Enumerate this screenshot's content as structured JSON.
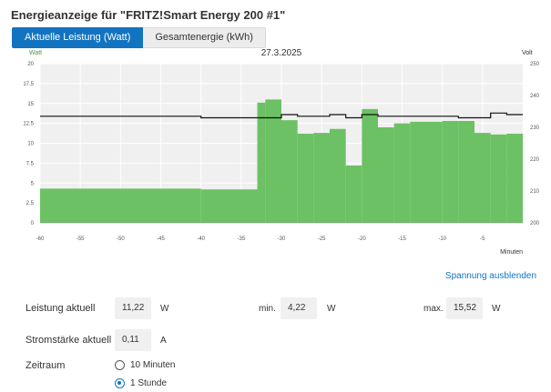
{
  "page": {
    "title": "Energieanzeige für \"FRITZ!Smart Energy 200 #1\""
  },
  "tabs": [
    {
      "label": "Aktuelle Leistung (Watt)",
      "active": true
    },
    {
      "label": "Gesamtenergie (kWh)",
      "active": false
    }
  ],
  "chart_data": {
    "type": "bar",
    "title": "27.3.2025",
    "left_axis_label": "Watt",
    "right_axis_label": "Volt",
    "xlabel": "Minuten",
    "xlim": [
      -60,
      0
    ],
    "ylim": [
      0,
      20
    ],
    "y2lim": [
      200,
      250
    ],
    "x_ticks": [
      -60,
      -55,
      -50,
      -45,
      -40,
      -35,
      -30,
      -25,
      -20,
      -15,
      -10,
      -5
    ],
    "x_tick_labels": [
      "-60",
      "-55",
      "-50",
      "-45",
      "-40",
      "-35",
      "-30",
      "-25",
      "-20",
      "-15",
      "-10",
      "-5"
    ],
    "y_tick_labels": [
      "0",
      "2.5",
      "5",
      "7.5",
      "10",
      "12.5",
      "15",
      "17.5",
      "20"
    ],
    "y2_tick_labels": [
      "200",
      "210",
      "220",
      "230",
      "240",
      "250"
    ],
    "bar_color": "#6cc164",
    "voltage_color": "#111111",
    "power_series": {
      "name": "Leistung",
      "bars": [
        {
          "from": -60,
          "to": -40,
          "value": 4.3
        },
        {
          "from": -40,
          "to": -33,
          "value": 4.2
        },
        {
          "from": -33,
          "to": -32,
          "value": 15.1
        },
        {
          "from": -32,
          "to": -30,
          "value": 15.5
        },
        {
          "from": -30,
          "to": -28,
          "value": 12.9
        },
        {
          "from": -28,
          "to": -26,
          "value": 11.2
        },
        {
          "from": -26,
          "to": -24,
          "value": 11.3
        },
        {
          "from": -24,
          "to": -22,
          "value": 11.8
        },
        {
          "from": -22,
          "to": -20,
          "value": 7.2
        },
        {
          "from": -20,
          "to": -18,
          "value": 14.3
        },
        {
          "from": -18,
          "to": -16,
          "value": 12.0
        },
        {
          "from": -16,
          "to": -14,
          "value": 12.5
        },
        {
          "from": -14,
          "to": -12,
          "value": 12.7
        },
        {
          "from": -12,
          "to": -10,
          "value": 12.7
        },
        {
          "from": -10,
          "to": -8,
          "value": 12.8
        },
        {
          "from": -8,
          "to": -6,
          "value": 12.8
        },
        {
          "from": -6,
          "to": -4,
          "value": 11.3
        },
        {
          "from": -4,
          "to": -2,
          "value": 11.1
        },
        {
          "from": -2,
          "to": 0,
          "value": 11.2
        }
      ]
    },
    "voltage_series": {
      "name": "Spannung",
      "points": [
        [
          -60,
          233.5
        ],
        [
          -40,
          233.5
        ],
        [
          -40,
          233.0
        ],
        [
          -30,
          233.0
        ],
        [
          -30,
          234.0
        ],
        [
          -28,
          234.0
        ],
        [
          -28,
          233.5
        ],
        [
          -24,
          233.5
        ],
        [
          -24,
          234.0
        ],
        [
          -22,
          234.0
        ],
        [
          -22,
          233.0
        ],
        [
          -20,
          233.0
        ],
        [
          -20,
          234.0
        ],
        [
          -18,
          234.0
        ],
        [
          -18,
          233.5
        ],
        [
          -8,
          233.5
        ],
        [
          -8,
          233.0
        ],
        [
          -4,
          233.0
        ],
        [
          -4,
          234.5
        ],
        [
          -2,
          234.5
        ],
        [
          -2,
          234.0
        ],
        [
          0,
          234.0
        ]
      ]
    }
  },
  "voltage_toggle": {
    "label": "Spannung ausblenden"
  },
  "measurements": {
    "power_label": "Leistung aktuell",
    "power_value": "11,22",
    "power_unit": "W",
    "min_label": "min.",
    "min_value": "4,22",
    "min_unit": "W",
    "max_label": "max.",
    "max_value": "15,52",
    "max_unit": "W",
    "current_label": "Stromstärke aktuell",
    "current_value": "0,11",
    "current_unit": "A"
  },
  "period": {
    "label": "Zeitraum",
    "options": [
      {
        "label": "10 Minuten",
        "selected": false
      },
      {
        "label": "1 Stunde",
        "selected": true
      }
    ]
  }
}
